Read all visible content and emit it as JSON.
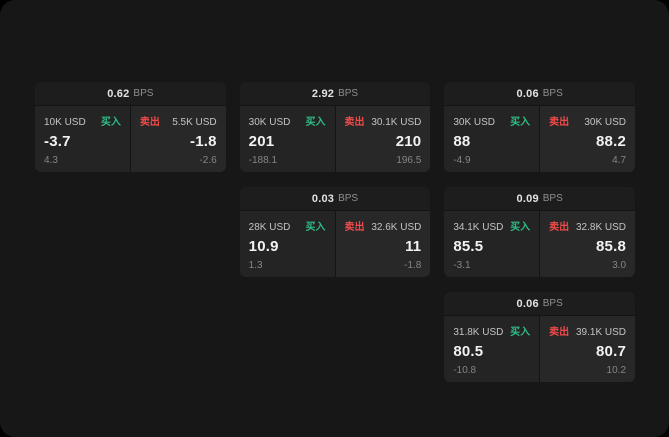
{
  "app": {
    "background": "#171717"
  },
  "colors": {
    "buy_accent": "#2ebd85",
    "sell_accent": "#ef4a4a",
    "card_header_bg": "#1d1d1d",
    "buy_panel_bg": "#242424",
    "sell_panel_bg": "#282828"
  },
  "labels": {
    "bps_unit": "BPS",
    "buy": "买入",
    "sell": "卖出"
  },
  "cards": [
    {
      "bps": "0.62",
      "buy": {
        "amount": "10K USD",
        "price": "-3.7",
        "delta": "4.3"
      },
      "sell": {
        "amount": "5.5K USD",
        "price": "-1.8",
        "delta": "-2.6"
      }
    },
    {
      "bps": "2.92",
      "buy": {
        "amount": "30K USD",
        "price": "201",
        "delta": "-188.1"
      },
      "sell": {
        "amount": "30.1K USD",
        "price": "210",
        "delta": "196.5"
      }
    },
    {
      "bps": "0.06",
      "buy": {
        "amount": "30K USD",
        "price": "88",
        "delta": "-4.9"
      },
      "sell": {
        "amount": "30K USD",
        "price": "88.2",
        "delta": "4.7"
      }
    },
    {
      "bps": "0.03",
      "buy": {
        "amount": "28K USD",
        "price": "10.9",
        "delta": "1.3"
      },
      "sell": {
        "amount": "32.6K USD",
        "price": "11",
        "delta": "-1.8"
      }
    },
    {
      "bps": "0.09",
      "buy": {
        "amount": "34.1K USD",
        "price": "85.5",
        "delta": "-3.1"
      },
      "sell": {
        "amount": "32.8K USD",
        "price": "85.8",
        "delta": "3.0"
      }
    },
    {
      "bps": "0.06",
      "buy": {
        "amount": "31.8K USD",
        "price": "80.5",
        "delta": "-10.8"
      },
      "sell": {
        "amount": "39.1K USD",
        "price": "80.7",
        "delta": "10.2"
      }
    }
  ]
}
